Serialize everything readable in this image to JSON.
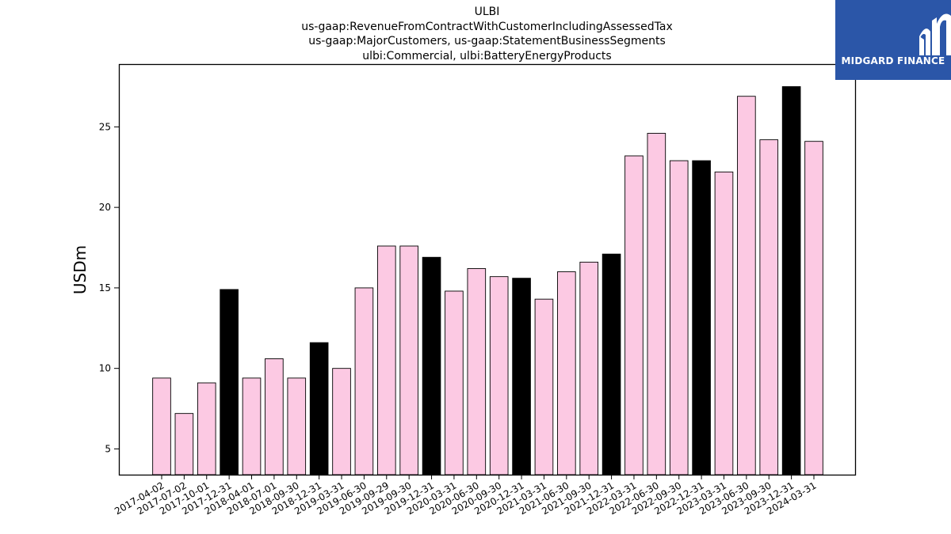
{
  "chart_data": {
    "type": "bar",
    "title_lines": [
      "ULBI",
      "us-gaap:RevenueFromContractWithCustomerIncludingAssessedTax",
      "us-gaap:MajorCustomers, us-gaap:StatementBusinessSegments",
      "ulbi:Commercial, ulbi:BatteryEnergyProducts"
    ],
    "ylabel": "USDm",
    "xlabel": "",
    "ylim": [
      3.4,
      28.9
    ],
    "yticks": [
      5,
      10,
      15,
      20,
      25
    ],
    "grid": false,
    "legend": "none",
    "colors": {
      "quarter": "#fcc9e3",
      "year_end": "#000000",
      "edge": "#000000"
    },
    "categories": [
      "2017-04-02",
      "2017-07-02",
      "2017-10-01",
      "2017-12-31",
      "2018-04-01",
      "2018-07-01",
      "2018-09-30",
      "2018-12-31",
      "2019-03-31",
      "2019-06-30",
      "2019-09-29",
      "2019-09-30",
      "2019-12-31",
      "2020-03-31",
      "2020-06-30",
      "2020-09-30",
      "2020-12-31",
      "2021-03-31",
      "2021-06-30",
      "2021-09-30",
      "2021-12-31",
      "2022-03-31",
      "2022-06-30",
      "2022-09-30",
      "2022-12-31",
      "2023-03-31",
      "2023-06-30",
      "2023-09-30",
      "2023-12-31",
      "2024-03-31"
    ],
    "values": [
      9.4,
      7.2,
      9.1,
      14.9,
      9.4,
      10.6,
      9.4,
      11.6,
      10.0,
      15.0,
      17.6,
      17.6,
      16.9,
      14.8,
      16.2,
      15.7,
      15.6,
      14.3,
      16.0,
      16.6,
      17.1,
      23.2,
      24.6,
      22.9,
      22.9,
      22.2,
      26.9,
      24.2,
      27.5,
      24.1
    ],
    "year_end": [
      false,
      false,
      false,
      true,
      false,
      false,
      false,
      true,
      false,
      false,
      false,
      false,
      true,
      false,
      false,
      false,
      true,
      false,
      false,
      false,
      true,
      false,
      false,
      false,
      true,
      false,
      false,
      false,
      true,
      false
    ]
  },
  "logo": {
    "text": "MIDGARD FINANCE"
  }
}
